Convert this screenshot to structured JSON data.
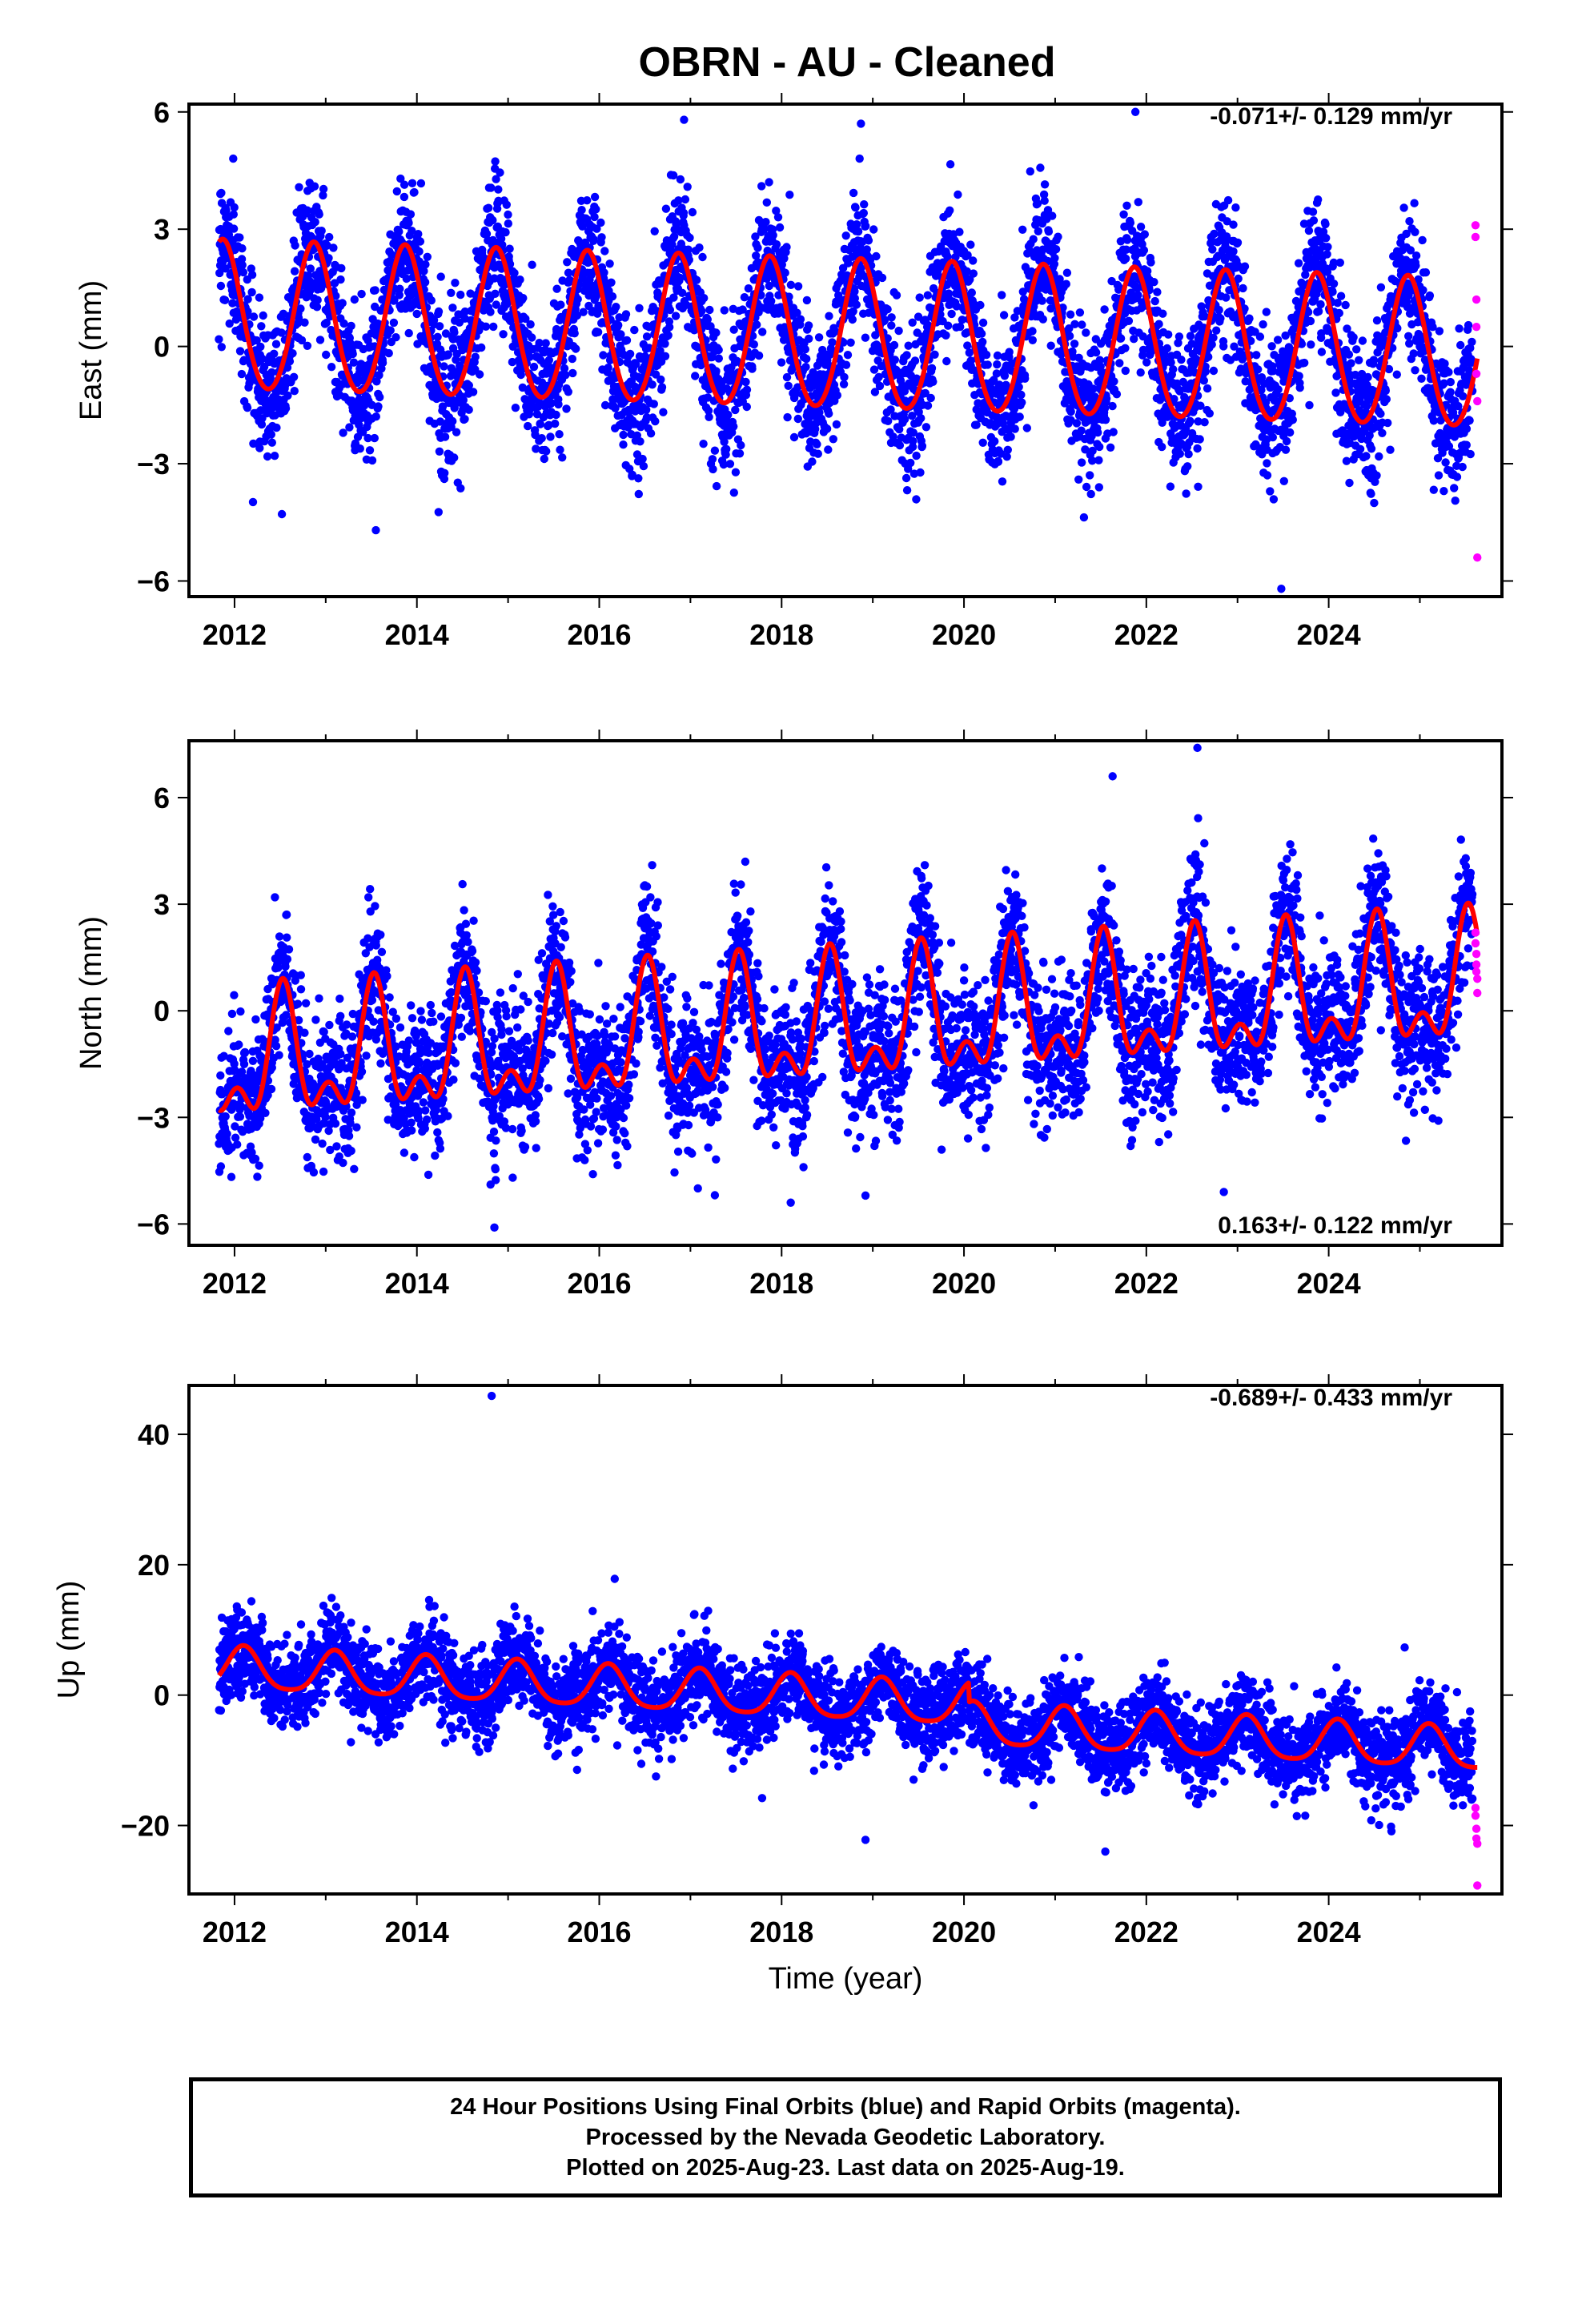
{
  "title": "OBRN  - AU - Cleaned",
  "colors": {
    "final_orbits": "#0000ff",
    "rapid_orbits": "#ff00ff",
    "model": "#ff0000"
  },
  "chart_data": [
    {
      "type": "scatter",
      "component": "East",
      "ylabel": "East (mm)",
      "xlim": [
        2011.5,
        2025.9
      ],
      "ylim": [
        -6.4,
        6.2
      ],
      "yticks": [
        -6,
        -3,
        0,
        3,
        6
      ],
      "xticks": [
        2012,
        2014,
        2016,
        2018,
        2020,
        2022,
        2024
      ],
      "rate_label": "-0.071+/- 0.129 mm/yr",
      "rate_position": "top-right",
      "model": {
        "start": 2011.83,
        "end": 2025.63,
        "offset": 0.7,
        "trend": -0.071,
        "annual_amp": 1.9,
        "annual_peak": 2011.87,
        "semiannual_amp": 0.15
      },
      "final_orbits": {
        "x_range": [
          2011.83,
          2025.58
        ],
        "scatter_sd": 0.9,
        "gap": [
          2025.58,
          2025.6
        ]
      },
      "rapid_orbits": {
        "x": [
          2025.61,
          2025.61,
          2025.62,
          2025.62,
          2025.62,
          2025.63,
          2025.63
        ],
        "y": [
          3.1,
          2.8,
          1.2,
          0.5,
          -0.7,
          -1.4,
          -5.4
        ]
      },
      "outliers": [
        {
          "x": 2016.93,
          "y": 5.8
        },
        {
          "x": 2018.87,
          "y": 5.7
        },
        {
          "x": 2021.88,
          "y": 6.0
        },
        {
          "x": 2023.48,
          "y": -6.2
        },
        {
          "x": 2013.55,
          "y": -4.7
        }
      ]
    },
    {
      "type": "scatter",
      "component": "North",
      "ylabel": "North (mm)",
      "xlim": [
        2011.5,
        2025.9
      ],
      "ylim": [
        -6.6,
        7.6
      ],
      "yticks": [
        -6,
        -3,
        0,
        3,
        6
      ],
      "xticks": [
        2012,
        2014,
        2016,
        2018,
        2020,
        2022,
        2024
      ],
      "rate_label": "0.163+/- 0.122 mm/yr",
      "rate_position": "bottom-right",
      "model": {
        "start": 2011.83,
        "end": 2025.63,
        "offset": -1.6,
        "trend": 0.163,
        "annual_amp": 1.5,
        "annual_peak": 2012.53,
        "semiannual_amp": 0.9
      },
      "final_orbits": {
        "x_range": [
          2011.83,
          2025.58
        ],
        "scatter_sd": 1.0,
        "gap": [
          2025.58,
          2025.6
        ]
      },
      "rapid_orbits": {
        "x": [
          2025.61,
          2025.61,
          2025.62,
          2025.62,
          2025.62,
          2025.63,
          2025.63
        ],
        "y": [
          2.2,
          1.9,
          1.6,
          1.3,
          1.1,
          0.9,
          0.5
        ]
      },
      "outliers": [
        {
          "x": 2022.56,
          "y": 7.4
        },
        {
          "x": 2021.63,
          "y": 6.6
        },
        {
          "x": 2014.85,
          "y": -6.1
        },
        {
          "x": 2018.1,
          "y": -5.4
        },
        {
          "x": 2022.85,
          "y": -5.1
        },
        {
          "x": 2018.92,
          "y": -5.2
        }
      ]
    },
    {
      "type": "scatter",
      "component": "Up",
      "ylabel": "Up (mm)",
      "xlabel": "Time (year)",
      "xlim": [
        2011.5,
        2025.9
      ],
      "ylim": [
        -30.5,
        47.5
      ],
      "yticks": [
        -20,
        0,
        20,
        40
      ],
      "xticks": [
        2012,
        2014,
        2016,
        2018,
        2020,
        2022,
        2024
      ],
      "rate_label": "-0.689+/- 0.433 mm/yr",
      "rate_position": "top-right",
      "model": {
        "start": 2011.83,
        "end": 2025.63,
        "offset": 4.0,
        "trend": -0.689,
        "annual_amp": 3.2,
        "annual_peak": 2012.1,
        "semiannual_amp": 0.6,
        "step": {
          "at": 2020.05,
          "size": -3.0
        }
      },
      "final_orbits": {
        "x_range": [
          2011.83,
          2025.58
        ],
        "scatter_sd": 3.3,
        "gap": [
          2025.58,
          2025.6
        ]
      },
      "rapid_orbits": {
        "x": [
          2025.61,
          2025.61,
          2025.62,
          2025.62,
          2025.63,
          2025.63
        ],
        "y": [
          -17.3,
          -18.5,
          -20.5,
          -22.0,
          -22.8,
          -29.2
        ]
      },
      "outliers": [
        {
          "x": 2014.82,
          "y": 45.9
        },
        {
          "x": 2018.92,
          "y": -22.2
        },
        {
          "x": 2021.55,
          "y": -24.0
        }
      ]
    }
  ],
  "footer": {
    "line1": "24 Hour Positions Using Final Orbits (blue) and Rapid Orbits (magenta).",
    "line2": "Processed by the Nevada Geodetic Laboratory.",
    "line3": "Plotted on 2025-Aug-23. Last data on 2025-Aug-19."
  }
}
